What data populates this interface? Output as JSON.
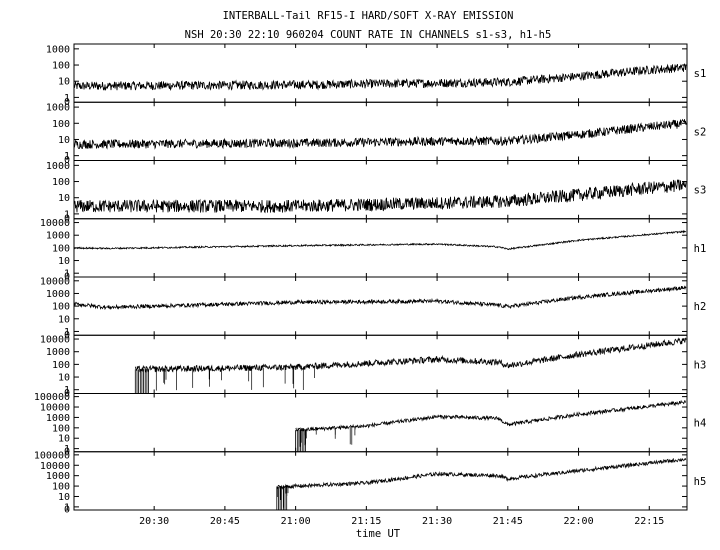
{
  "chart_data": {
    "type": "line",
    "title": "INTERBALL-Tail RF15-I HARD/SOFT X-RAY EMISSION",
    "subtitle": "NSH 20:30 22:10 960204  COUNT RATE IN CHANNELS s1-s3, h1-h5",
    "xlabel": "time UT",
    "x_ticks": [
      "20:30",
      "20:45",
      "21:00",
      "21:15",
      "21:30",
      "21:45",
      "22:00",
      "22:15"
    ],
    "x_tick_minutes": [
      1230,
      1245,
      1260,
      1275,
      1290,
      1305,
      1320,
      1335
    ],
    "xlim_minutes": [
      1213,
      1343
    ],
    "yscale": "log",
    "grid": false,
    "panels": [
      {
        "name": "s1",
        "ylim_exp": [
          -0.3,
          3.3
        ],
        "y_ticks": [
          "1000",
          "100",
          "10",
          "1",
          "0"
        ],
        "x": [
          1213,
          1260,
          1295,
          1305,
          1320,
          1335,
          1343
        ],
        "values": [
          5,
          6,
          8,
          9,
          20,
          50,
          70
        ],
        "noise": 0.55,
        "data_start": 1213,
        "dropouts": []
      },
      {
        "name": "s2",
        "ylim_exp": [
          -0.3,
          3.3
        ],
        "y_ticks": [
          "1000",
          "100",
          "10",
          "1",
          "0"
        ],
        "x": [
          1213,
          1260,
          1295,
          1305,
          1320,
          1335,
          1343
        ],
        "values": [
          5,
          6,
          8,
          8,
          20,
          60,
          100
        ],
        "noise": 0.55,
        "data_start": 1213,
        "dropouts": []
      },
      {
        "name": "s3",
        "ylim_exp": [
          -0.3,
          3.3
        ],
        "y_ticks": [
          "1000",
          "100",
          "10",
          "1",
          "0"
        ],
        "x": [
          1213,
          1260,
          1295,
          1305,
          1320,
          1335,
          1343
        ],
        "values": [
          3,
          3,
          5,
          6,
          15,
          40,
          60
        ],
        "noise": 0.8,
        "data_start": 1213,
        "dropouts": []
      },
      {
        "name": "h1",
        "ylim_exp": [
          -0.3,
          4.3
        ],
        "y_ticks": [
          "10000",
          "1000",
          "100",
          "10",
          "1",
          "0"
        ],
        "x": [
          1213,
          1220,
          1260,
          1290,
          1303,
          1305,
          1320,
          1343
        ],
        "values": [
          100,
          90,
          150,
          200,
          120,
          80,
          400,
          2000
        ],
        "noise": 0.12,
        "data_start": 1213,
        "dropouts": []
      },
      {
        "name": "h2",
        "ylim_exp": [
          -0.3,
          4.3
        ],
        "y_ticks": [
          "10000",
          "1000",
          "100",
          "10",
          "1",
          "0"
        ],
        "x": [
          1213,
          1220,
          1260,
          1290,
          1303,
          1305,
          1320,
          1343
        ],
        "values": [
          150,
          80,
          200,
          250,
          120,
          90,
          500,
          3000
        ],
        "noise": 0.3,
        "data_start": 1213,
        "dropouts": []
      },
      {
        "name": "h3",
        "ylim_exp": [
          -0.3,
          4.3
        ],
        "y_ticks": [
          "10000",
          "1000",
          "100",
          "10",
          "1",
          "0"
        ],
        "x": [
          1226,
          1260,
          1290,
          1303,
          1305,
          1320,
          1343
        ],
        "values": [
          40,
          60,
          250,
          150,
          80,
          600,
          8000
        ],
        "noise": 0.5,
        "data_start": 1226,
        "dropouts": [
          1226,
          1241,
          1253,
          1264
        ]
      },
      {
        "name": "h4",
        "ylim_exp": [
          -0.3,
          5.3
        ],
        "y_ticks": [
          "100000",
          "10000",
          "1000",
          "100",
          "10",
          "1",
          "0"
        ],
        "x": [
          1260,
          1275,
          1290,
          1303,
          1305,
          1320,
          1343
        ],
        "values": [
          60,
          150,
          1200,
          800,
          200,
          2000,
          30000
        ],
        "noise": 0.35,
        "data_start": 1260,
        "dropouts": [
          1260,
          1264,
          1280
        ]
      },
      {
        "name": "h5",
        "ylim_exp": [
          -0.3,
          5.3
        ],
        "y_ticks": [
          "100000",
          "10000",
          "1000",
          "100",
          "10",
          "1",
          "0"
        ],
        "x": [
          1256,
          1275,
          1290,
          1303,
          1305,
          1320,
          1343
        ],
        "values": [
          80,
          200,
          1500,
          1000,
          500,
          3000,
          40000
        ],
        "noise": 0.35,
        "data_start": 1256,
        "dropouts": [
          1256,
          1258.5
        ]
      }
    ]
  }
}
